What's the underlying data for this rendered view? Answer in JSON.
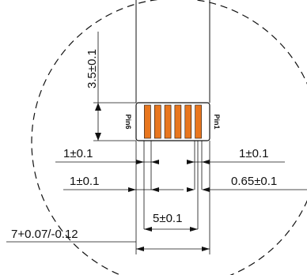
{
  "drawing": {
    "dimensions": {
      "tail_length": "3.5±0.1",
      "left_margin_upper": "1±0.1",
      "right_margin_upper": "1±0.1",
      "left_margin_lower": "1±0.1",
      "pitch": "0.65±0.1",
      "pad_span": "5±0.1",
      "total_width": "7+0.07/-0.12"
    },
    "pin_labels": {
      "left": "Pin6",
      "right": "Pin1"
    },
    "pad_count": 6,
    "colors": {
      "pad": "#E8761E",
      "line": "#111111",
      "background": "#FFFFFF"
    }
  }
}
